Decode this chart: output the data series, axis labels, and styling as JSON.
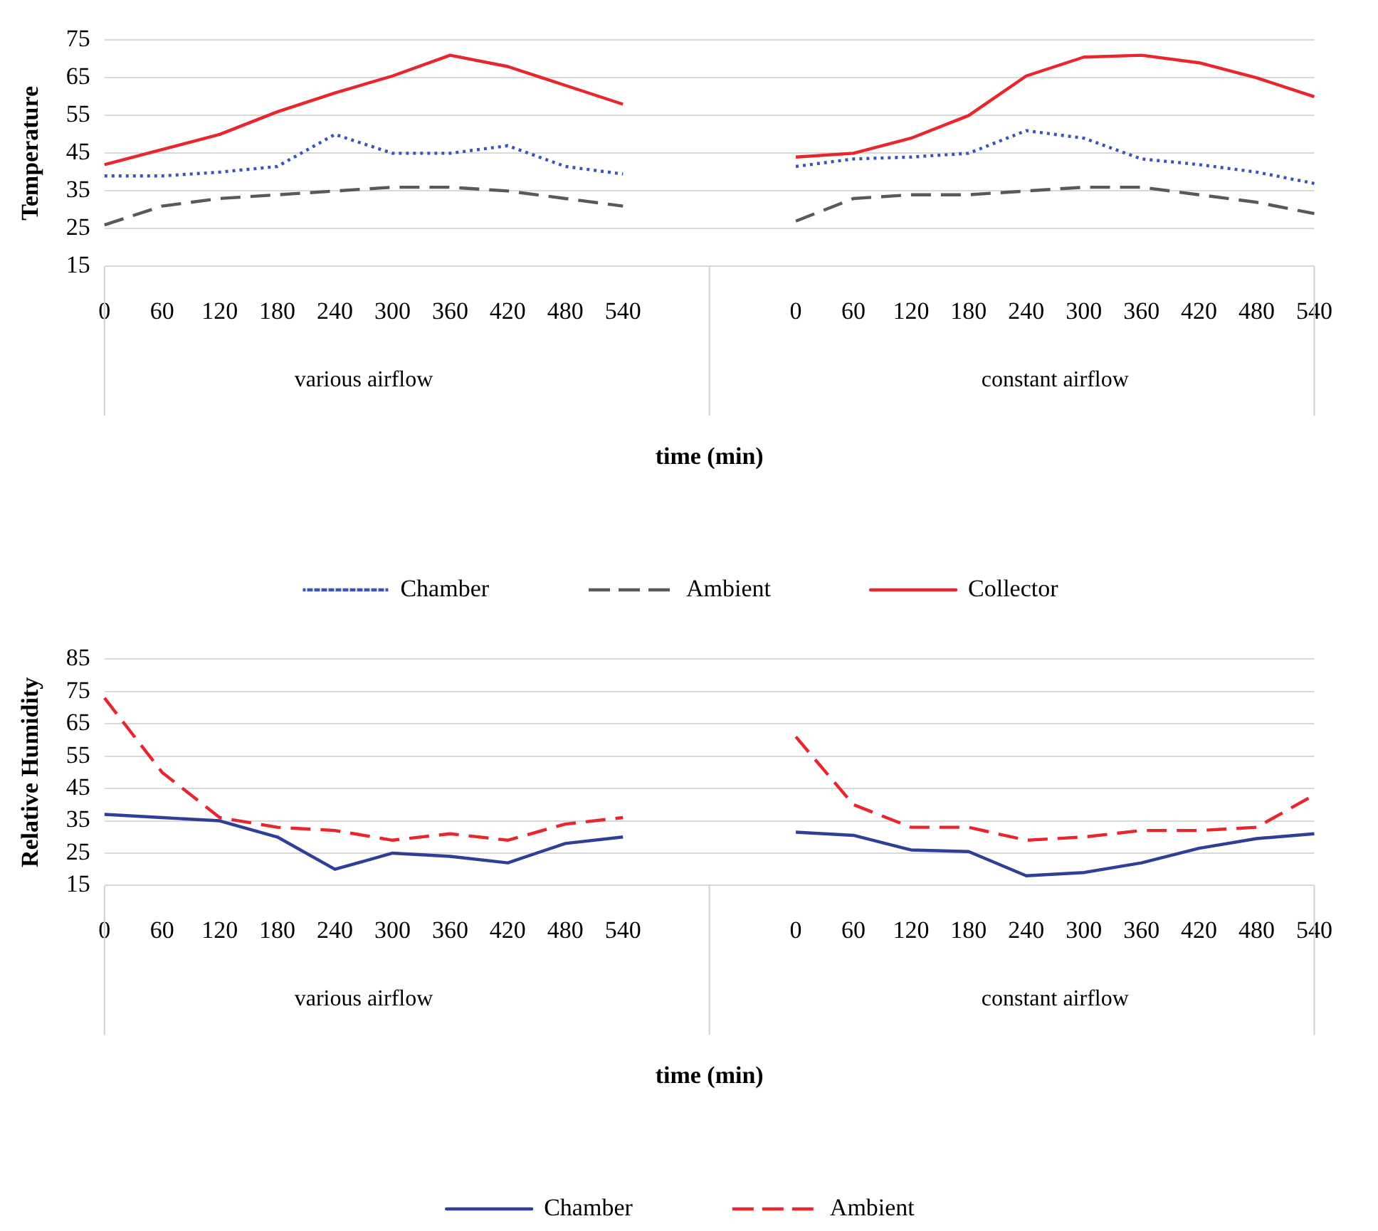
{
  "chart_data": [
    {
      "type": "line",
      "ylabel": "Temperature",
      "xlabel": "time (min)",
      "categories": [
        "0",
        "60",
        "120",
        "180",
        "240",
        "300",
        "360",
        "420",
        "480",
        "540",
        null,
        null,
        "0",
        "60",
        "120",
        "180",
        "240",
        "300",
        "360",
        "420",
        "480",
        "540"
      ],
      "annotations": [
        "various airflow",
        "constant airflow"
      ],
      "series": [
        {
          "name": "Chamber",
          "color": "#3a55b4",
          "line_style": "dotted",
          "values": [
            39,
            39,
            40,
            41.5,
            50,
            45,
            45,
            47,
            41.5,
            39.5,
            null,
            null,
            41.5,
            43.5,
            44,
            45,
            51,
            49,
            43.5,
            42,
            40,
            37
          ]
        },
        {
          "name": "Ambient",
          "color": "#595959",
          "line_style": "dashed",
          "values": [
            26,
            31,
            33,
            34,
            35,
            36,
            36,
            35,
            33,
            31,
            null,
            null,
            27,
            33,
            34,
            34,
            35,
            36,
            36,
            34,
            32,
            29
          ]
        },
        {
          "name": "Collector",
          "color": "#e8262e",
          "line_style": "solid",
          "values": [
            42,
            46,
            50,
            56,
            61,
            65.5,
            71,
            68,
            63,
            58,
            null,
            null,
            44,
            45,
            49,
            55,
            65.5,
            70.5,
            71,
            69,
            65,
            60
          ]
        }
      ],
      "ylim": [
        15,
        75
      ],
      "yticks": [
        15,
        25,
        35,
        45,
        55,
        65,
        75
      ],
      "grid": "y",
      "legend": "bottom"
    },
    {
      "type": "line",
      "ylabel": "Relative Humidity",
      "xlabel": "time (min)",
      "categories": [
        "0",
        "60",
        "120",
        "180",
        "240",
        "300",
        "360",
        "420",
        "480",
        "540",
        null,
        null,
        "0",
        "60",
        "120",
        "180",
        "240",
        "300",
        "360",
        "420",
        "480",
        "540"
      ],
      "annotations": [
        "various airflow",
        "constant airflow"
      ],
      "series": [
        {
          "name": "Chamber",
          "color": "#2e3f98",
          "line_style": "solid",
          "values": [
            37,
            36,
            35,
            30,
            20,
            25,
            24,
            22,
            28,
            30,
            null,
            null,
            31.5,
            30.5,
            26,
            25.5,
            18,
            19,
            22,
            26.5,
            29.5,
            31
          ]
        },
        {
          "name": "Ambient",
          "color": "#e8262e",
          "line_style": "dashed",
          "values": [
            73,
            50,
            36,
            33,
            32,
            29,
            31,
            29,
            34,
            36,
            null,
            null,
            61,
            40,
            33,
            33,
            29,
            30,
            32,
            32,
            33,
            43
          ]
        }
      ],
      "ylim": [
        15,
        85
      ],
      "yticks": [
        15,
        25,
        35,
        45,
        55,
        65,
        75,
        85
      ],
      "grid": "y",
      "legend": "bottom"
    }
  ]
}
